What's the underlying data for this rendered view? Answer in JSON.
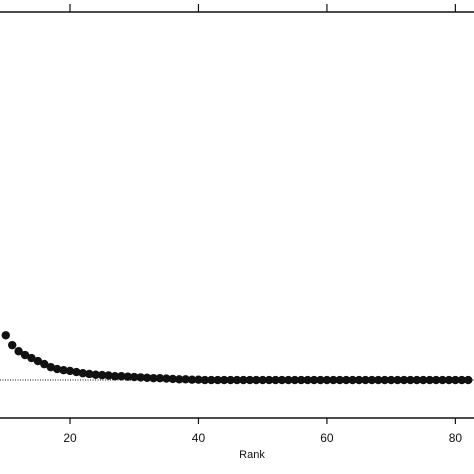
{
  "chart_data": {
    "type": "scatter",
    "xlabel": "Rank",
    "x": [
      10,
      11,
      12,
      13,
      14,
      15,
      16,
      17,
      18,
      19,
      20,
      21,
      22,
      23,
      24,
      25,
      26,
      27,
      28,
      29,
      30,
      31,
      32,
      33,
      34,
      35,
      36,
      37,
      38,
      39,
      40,
      41,
      42,
      43,
      44,
      45,
      46,
      47,
      48,
      49,
      50,
      51,
      52,
      53,
      54,
      55,
      56,
      57,
      58,
      59,
      60,
      61,
      62,
      63,
      64,
      65,
      66,
      67,
      68,
      69,
      70,
      71,
      72,
      73,
      74,
      75,
      76,
      77,
      78,
      79,
      80,
      81,
      82
    ],
    "values": [
      2.18,
      1.92,
      1.76,
      1.66,
      1.58,
      1.5,
      1.42,
      1.34,
      1.29,
      1.26,
      1.24,
      1.21,
      1.18,
      1.16,
      1.14,
      1.13,
      1.12,
      1.1,
      1.1,
      1.09,
      1.08,
      1.07,
      1.06,
      1.05,
      1.05,
      1.04,
      1.03,
      1.02,
      1.02,
      1.01,
      1.01,
      1,
      1,
      1,
      1,
      1,
      1,
      1,
      1,
      1,
      1,
      1,
      1,
      1,
      1,
      1,
      1,
      1,
      1,
      1,
      1,
      1,
      1,
      1,
      1,
      1,
      1,
      1,
      1,
      1,
      1,
      1,
      1,
      1,
      1,
      1,
      1,
      1,
      1,
      1,
      1,
      1,
      1
    ],
    "color": "#111111",
    "xlim": [
      9.1,
      82.9
    ],
    "xticks": [
      20,
      40,
      60,
      80
    ],
    "ylim": [
      0,
      10.7
    ],
    "reference_line": 1
  }
}
